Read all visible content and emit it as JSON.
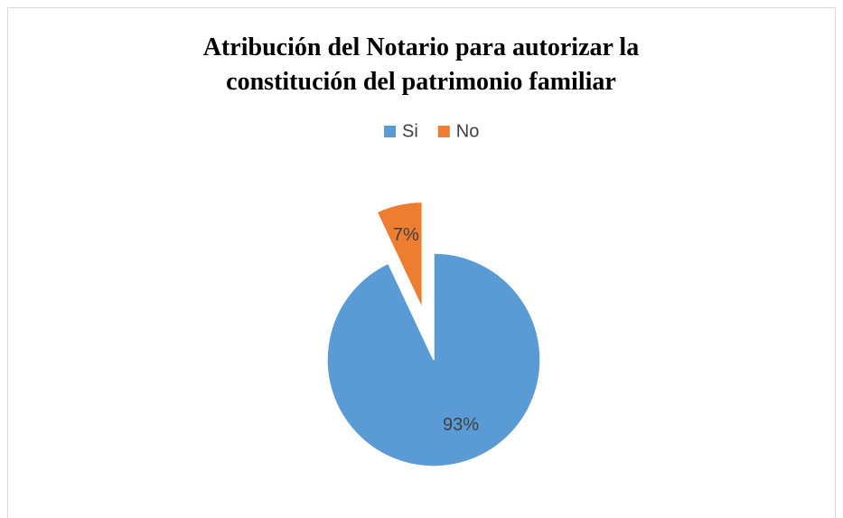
{
  "chart_data": {
    "type": "pie",
    "title": "Atribución del Notario para autorizar la constitución del patrimonio familiar",
    "categories": [
      "Si",
      "No"
    ],
    "values": [
      93,
      7
    ],
    "value_labels": [
      "93%",
      "7%"
    ],
    "colors": [
      "#5b9bd5",
      "#ed7d31"
    ],
    "legend": "top"
  }
}
